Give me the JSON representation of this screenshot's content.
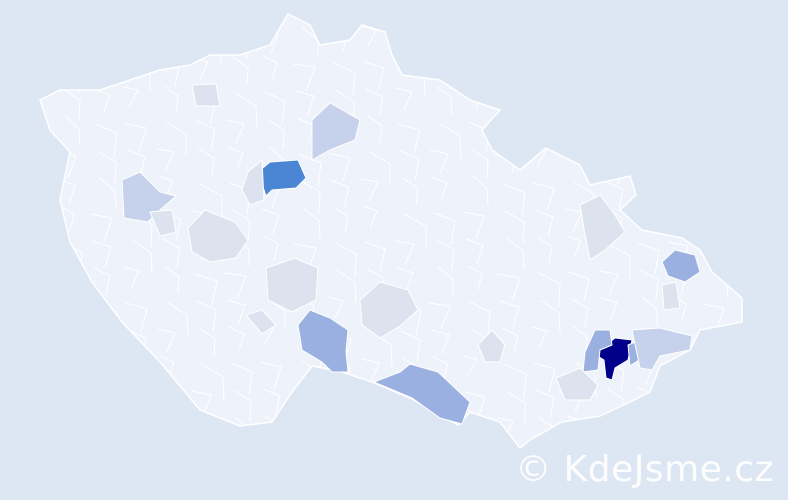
{
  "map": {
    "country_fill": "#eef2fa",
    "border_color": "#ffffff",
    "regions": [
      {
        "level": "highest",
        "color": "#00008b"
      },
      {
        "level": "high",
        "color": "#4a86d4"
      },
      {
        "level": "medium",
        "color": "#9ab0e0"
      },
      {
        "level": "low",
        "color": "#c6d1ec"
      },
      {
        "level": "minimal",
        "color": "#dde3ee"
      }
    ]
  },
  "watermark": "© KdeJsme.cz"
}
